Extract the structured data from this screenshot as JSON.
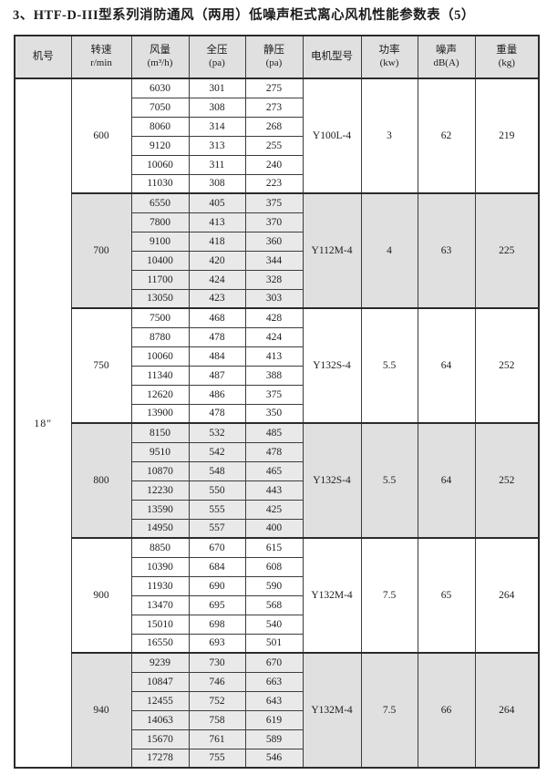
{
  "title": "3、HTF-D-III型系列消防通风（两用）低噪声柜式离心风机性能参数表（5）",
  "table": {
    "machine_no": "18″",
    "headers": [
      {
        "l1": "机号",
        "l2": ""
      },
      {
        "l1": "转速",
        "l2": "r/min"
      },
      {
        "l1": "风量",
        "l2": "(m³/h)"
      },
      {
        "l1": "全压",
        "l2": "(pa)"
      },
      {
        "l1": "静压",
        "l2": "(pa)"
      },
      {
        "l1": "电机型号",
        "l2": ""
      },
      {
        "l1": "功率",
        "l2": "(kw)"
      },
      {
        "l1": "噪声",
        "l2": "dB(A)"
      },
      {
        "l1": "重量",
        "l2": "(kg)"
      }
    ],
    "groups": [
      {
        "speed": "600",
        "shaded": false,
        "rows": [
          [
            "6030",
            "301",
            "275"
          ],
          [
            "7050",
            "308",
            "273"
          ],
          [
            "8060",
            "314",
            "268"
          ],
          [
            "9120",
            "313",
            "255"
          ],
          [
            "10060",
            "311",
            "240"
          ],
          [
            "11030",
            "308",
            "223"
          ]
        ],
        "motor": "Y100L-4",
        "power": "3",
        "noise": "62",
        "weight": "219"
      },
      {
        "speed": "700",
        "shaded": true,
        "rows": [
          [
            "6550",
            "405",
            "375"
          ],
          [
            "7800",
            "413",
            "370"
          ],
          [
            "9100",
            "418",
            "360"
          ],
          [
            "10400",
            "420",
            "344"
          ],
          [
            "11700",
            "424",
            "328"
          ],
          [
            "13050",
            "423",
            "303"
          ]
        ],
        "motor": "Y112M-4",
        "power": "4",
        "noise": "63",
        "weight": "225"
      },
      {
        "speed": "750",
        "shaded": false,
        "rows": [
          [
            "7500",
            "468",
            "428"
          ],
          [
            "8780",
            "478",
            "424"
          ],
          [
            "10060",
            "484",
            "413"
          ],
          [
            "11340",
            "487",
            "388"
          ],
          [
            "12620",
            "486",
            "375"
          ],
          [
            "13900",
            "478",
            "350"
          ]
        ],
        "motor": "Y132S-4",
        "power": "5.5",
        "noise": "64",
        "weight": "252"
      },
      {
        "speed": "800",
        "shaded": true,
        "rows": [
          [
            "8150",
            "532",
            "485"
          ],
          [
            "9510",
            "542",
            "478"
          ],
          [
            "10870",
            "548",
            "465"
          ],
          [
            "12230",
            "550",
            "443"
          ],
          [
            "13590",
            "555",
            "425"
          ],
          [
            "14950",
            "557",
            "400"
          ]
        ],
        "motor": "Y132S-4",
        "power": "5.5",
        "noise": "64",
        "weight": "252"
      },
      {
        "speed": "900",
        "shaded": false,
        "rows": [
          [
            "8850",
            "670",
            "615"
          ],
          [
            "10390",
            "684",
            "608"
          ],
          [
            "11930",
            "690",
            "590"
          ],
          [
            "13470",
            "695",
            "568"
          ],
          [
            "15010",
            "698",
            "540"
          ],
          [
            "16550",
            "693",
            "501"
          ]
        ],
        "motor": "Y132M-4",
        "power": "7.5",
        "noise": "65",
        "weight": "264"
      },
      {
        "speed": "940",
        "shaded": true,
        "rows": [
          [
            "9239",
            "730",
            "670"
          ],
          [
            "10847",
            "746",
            "663"
          ],
          [
            "12455",
            "752",
            "643"
          ],
          [
            "14063",
            "758",
            "619"
          ],
          [
            "15670",
            "761",
            "589"
          ],
          [
            "17278",
            "755",
            "546"
          ]
        ],
        "motor": "Y132M-4",
        "power": "7.5",
        "noise": "66",
        "weight": "264"
      }
    ]
  }
}
